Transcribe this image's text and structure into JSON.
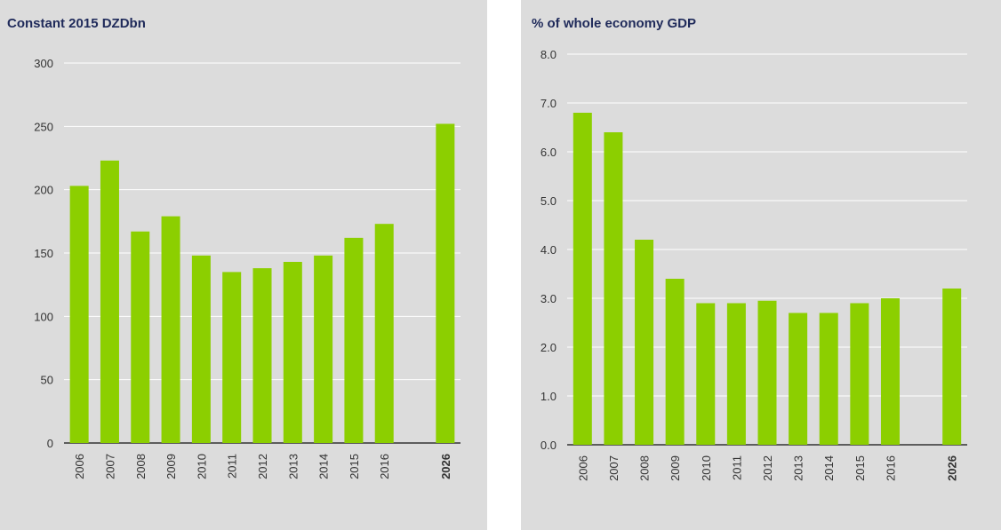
{
  "colors": {
    "bar": "#8ccf00",
    "panel_bg": "#dcdcdc",
    "grid": "#ffffff",
    "title": "#1f2a5a",
    "axis": "#333333"
  },
  "chart_data": [
    {
      "type": "bar",
      "title": "Constant 2015 DZDbn",
      "xlabel": "",
      "ylabel": "",
      "categories": [
        "2006",
        "2007",
        "2008",
        "2009",
        "2010",
        "2011",
        "2012",
        "2013",
        "2014",
        "2015",
        "2016",
        "2026"
      ],
      "values": [
        203,
        223,
        167,
        179,
        148,
        135,
        138,
        143,
        148,
        162,
        173,
        252
      ],
      "ylim": [
        0,
        300
      ],
      "yticks": [
        "0",
        "50",
        "100",
        "150",
        "200",
        "250",
        "300"
      ],
      "highlight_category": "2026",
      "grid": true
    },
    {
      "type": "bar",
      "title": "% of whole economy GDP",
      "xlabel": "",
      "ylabel": "",
      "categories": [
        "2006",
        "2007",
        "2008",
        "2009",
        "2010",
        "2011",
        "2012",
        "2013",
        "2014",
        "2015",
        "2016",
        "2026"
      ],
      "values": [
        6.8,
        6.4,
        4.2,
        3.4,
        2.9,
        2.9,
        2.95,
        2.7,
        2.7,
        2.9,
        3.0,
        3.2
      ],
      "ylim": [
        0,
        8
      ],
      "yticks": [
        "0.0",
        "1.0",
        "2.0",
        "3.0",
        "4.0",
        "5.0",
        "6.0",
        "7.0",
        "8.0"
      ],
      "highlight_category": "2026",
      "grid": true
    }
  ]
}
